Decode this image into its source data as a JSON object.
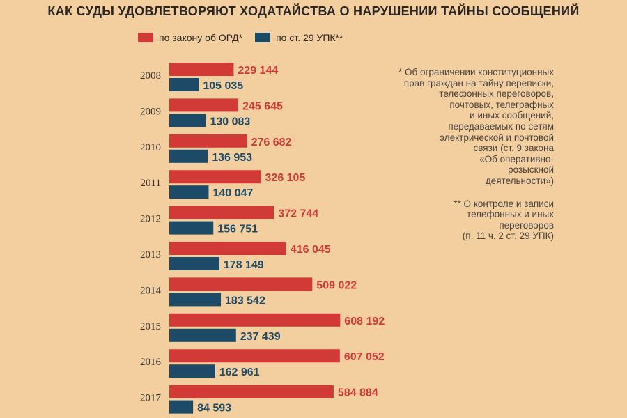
{
  "title": "КАК СУДЫ УДОВЛЕТВОРЯЮТ ХОДАТАЙСТВА О НАРУШЕНИИ  ТАЙНЫ СООБЩЕНИЙ",
  "colors": {
    "background": "#f3cfa0",
    "ord": "#d13a36",
    "upk": "#1d4a66",
    "text": "#2a2623"
  },
  "legend": {
    "ord_label": "по закону об ОРД*",
    "upk_label": "по ст. 29 УПК**"
  },
  "notes": {
    "ord_note": "* Об ограничении конституционных\nправ граждан на тайну переписки,\nтелефонных переговоров,\nпочтовых, телеграфных\nи иных сообщений,\nпередаваемых по сетям\nэлектрической и почтовой\nсвязи (ст. 9 закона\n«Об оперативно-\nрозыскной\nдеятельности»)",
    "upk_note": "** О контроле и записи\nтелефонных и иных\nпереговоров\n(п. 11 ч. 2 ст. 29 УПК)"
  },
  "chart_data": {
    "type": "bar",
    "orientation": "horizontal",
    "categories": [
      "2008",
      "2009",
      "2010",
      "2011",
      "2012",
      "2013",
      "2014",
      "2015",
      "2016",
      "2017"
    ],
    "series": [
      {
        "name": "по закону об ОРД*",
        "color": "#d13a36",
        "values": [
          229144,
          245645,
          276682,
          326105,
          372744,
          416045,
          509022,
          608192,
          607052,
          584884
        ],
        "labels": [
          "229 144",
          "245 645",
          "276 682",
          "326 105",
          "372 744",
          "416 045",
          "509 022",
          "608 192",
          "607 052",
          "584 884"
        ]
      },
      {
        "name": "по ст. 29 УПК**",
        "color": "#1d4a66",
        "values": [
          105035,
          130083,
          136953,
          140047,
          156751,
          178149,
          183542,
          237439,
          162961,
          84593
        ],
        "labels": [
          "105 035",
          "130 083",
          "136 953",
          "140 047",
          "156 751",
          "178 149",
          "183 542",
          "237 439",
          "162 961",
          "84 593"
        ]
      }
    ],
    "xlim": [
      0,
      610000
    ],
    "legend_position": "top",
    "grid": false
  }
}
